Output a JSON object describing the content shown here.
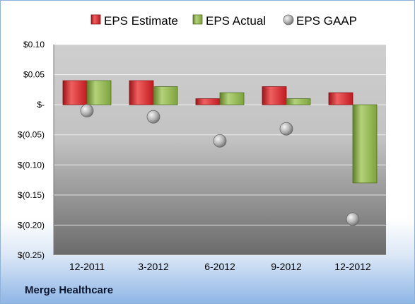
{
  "chart_data": {
    "type": "bar",
    "categories": [
      "12-2011",
      "3-2012",
      "6-2012",
      "9-2012",
      "12-2012"
    ],
    "series": [
      {
        "name": "EPS Estimate",
        "kind": "bar",
        "color": "#d9252c",
        "values": [
          0.04,
          0.04,
          0.01,
          0.03,
          0.02
        ]
      },
      {
        "name": "EPS Actual",
        "kind": "bar",
        "color": "#8cb34a",
        "values": [
          0.04,
          0.03,
          0.02,
          0.01,
          -0.13
        ]
      },
      {
        "name": "EPS GAAP",
        "kind": "marker",
        "color": "#b9b9b9",
        "values": [
          -0.01,
          -0.02,
          -0.06,
          -0.04,
          -0.19
        ]
      }
    ],
    "yticks": [
      {
        "value": 0.1,
        "label": "$0.10"
      },
      {
        "value": 0.05,
        "label": "$0.05"
      },
      {
        "value": 0.0,
        "label": "$-"
      },
      {
        "value": -0.05,
        "label": "$(0.05)"
      },
      {
        "value": -0.1,
        "label": "$(0.10)"
      },
      {
        "value": -0.15,
        "label": "$(0.15)"
      },
      {
        "value": -0.2,
        "label": "$(0.20)"
      },
      {
        "value": -0.25,
        "label": "$(0.25)"
      }
    ],
    "ylim": [
      -0.25,
      0.1
    ],
    "grid": true,
    "legend_position": "top"
  },
  "footer": {
    "company": "Merge Healthcare"
  }
}
